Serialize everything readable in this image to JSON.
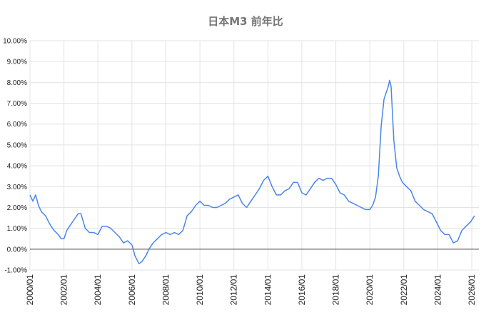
{
  "chart_data": {
    "type": "line",
    "title": "日本M3 前年比",
    "xlabel": "",
    "ylabel": "",
    "ylim": [
      -1,
      10
    ],
    "xlim": [
      "2000-01",
      "2026-06"
    ],
    "grid": true,
    "legend": "none",
    "y_ticks": [
      "-1.00%",
      "0.00%",
      "1.00%",
      "2.00%",
      "3.00%",
      "4.00%",
      "5.00%",
      "6.00%",
      "7.00%",
      "8.00%",
      "9.00%",
      "10.00%"
    ],
    "x_ticks": [
      "2000/01",
      "2002/01",
      "2004/01",
      "2006/01",
      "2008/01",
      "2010/01",
      "2012/01",
      "2014/01",
      "2016/01",
      "2018/01",
      "2020/01",
      "2022/01",
      "2024/01",
      "2026/01"
    ],
    "series": [
      {
        "color": "#4a86e8",
        "x": [
          "2000-01",
          "2000-03",
          "2000-05",
          "2000-07",
          "2000-09",
          "2000-12",
          "2001-03",
          "2001-06",
          "2001-09",
          "2001-11",
          "2002-01",
          "2002-03",
          "2002-06",
          "2002-09",
          "2002-11",
          "2003-01",
          "2003-04",
          "2003-07",
          "2003-10",
          "2004-01",
          "2004-04",
          "2004-07",
          "2004-10",
          "2005-01",
          "2005-04",
          "2005-07",
          "2005-10",
          "2006-01",
          "2006-02",
          "2006-03",
          "2006-06",
          "2006-08",
          "2006-11",
          "2007-01",
          "2007-04",
          "2007-07",
          "2007-10",
          "2008-01",
          "2008-04",
          "2008-07",
          "2008-10",
          "2009-01",
          "2009-04",
          "2009-07",
          "2009-10",
          "2010-01",
          "2010-04",
          "2010-07",
          "2010-10",
          "2011-01",
          "2011-04",
          "2011-07",
          "2011-10",
          "2012-01",
          "2012-04",
          "2012-07",
          "2012-10",
          "2013-01",
          "2013-04",
          "2013-07",
          "2013-10",
          "2014-01",
          "2014-04",
          "2014-07",
          "2014-10",
          "2015-01",
          "2015-04",
          "2015-07",
          "2015-10",
          "2016-01",
          "2016-04",
          "2016-07",
          "2016-10",
          "2017-01",
          "2017-04",
          "2017-07",
          "2017-10",
          "2018-01",
          "2018-04",
          "2018-07",
          "2018-10",
          "2019-01",
          "2019-04",
          "2019-07",
          "2019-10",
          "2020-01",
          "2020-03",
          "2020-05",
          "2020-07",
          "2020-09",
          "2020-11",
          "2021-01",
          "2021-02",
          "2021-03",
          "2021-04",
          "2021-06",
          "2021-08",
          "2021-10",
          "2021-12",
          "2022-03",
          "2022-06",
          "2022-09",
          "2022-12",
          "2023-03",
          "2023-06",
          "2023-09",
          "2023-12",
          "2024-03",
          "2024-06",
          "2024-09",
          "2024-12",
          "2025-03",
          "2025-06",
          "2025-09",
          "2025-12",
          "2026-03"
        ],
        "values": [
          2.6,
          2.3,
          2.6,
          2.1,
          1.8,
          1.6,
          1.2,
          0.9,
          0.7,
          0.5,
          0.5,
          0.9,
          1.2,
          1.5,
          1.7,
          1.7,
          1.0,
          0.8,
          0.8,
          0.7,
          1.1,
          1.1,
          1.0,
          0.8,
          0.6,
          0.3,
          0.4,
          0.2,
          0.0,
          -0.3,
          -0.7,
          -0.6,
          -0.3,
          0.0,
          0.3,
          0.5,
          0.7,
          0.8,
          0.7,
          0.8,
          0.7,
          0.9,
          1.6,
          1.8,
          2.1,
          2.3,
          2.1,
          2.1,
          2.0,
          2.0,
          2.1,
          2.2,
          2.4,
          2.5,
          2.6,
          2.2,
          2.0,
          2.3,
          2.6,
          2.9,
          3.3,
          3.5,
          3.0,
          2.6,
          2.6,
          2.8,
          2.9,
          3.2,
          3.2,
          2.7,
          2.6,
          2.9,
          3.2,
          3.4,
          3.3,
          3.4,
          3.4,
          3.1,
          2.7,
          2.6,
          2.3,
          2.2,
          2.1,
          2.0,
          1.9,
          1.9,
          2.1,
          2.5,
          3.5,
          5.9,
          7.2,
          7.6,
          7.8,
          8.1,
          7.8,
          5.2,
          3.9,
          3.5,
          3.2,
          3.0,
          2.8,
          2.3,
          2.1,
          1.9,
          1.8,
          1.7,
          1.3,
          0.9,
          0.7,
          0.7,
          0.3,
          0.4,
          0.9,
          1.1,
          1.3,
          1.6
        ]
      }
    ]
  }
}
